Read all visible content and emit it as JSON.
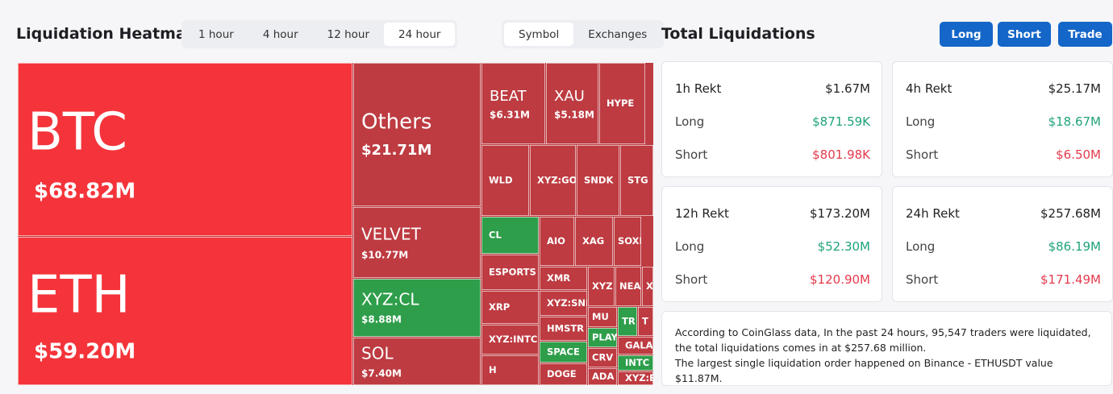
{
  "header": {
    "title": "Liquidation Heatmap",
    "time_tabs": [
      "1 hour",
      "4 hour",
      "12 hour",
      "24 hour"
    ],
    "active_time_tab": 3,
    "view_tabs": [
      "Symbol",
      "Exchanges"
    ],
    "active_view_tab": 0
  },
  "heatmap": {
    "colors": {
      "hot": "#f4343a",
      "loss": "#bd3b41",
      "gain": "#2e9e4a"
    },
    "tiles": [
      {
        "label": "BTC",
        "value": "$68.82M",
        "tone": "hot"
      },
      {
        "label": "ETH",
        "value": "$59.20M",
        "tone": "hot"
      },
      {
        "label": "Others",
        "value": "$21.71M",
        "tone": "loss"
      },
      {
        "label": "VELVET",
        "value": "$10.77M",
        "tone": "loss"
      },
      {
        "label": "XYZ:CL",
        "value": "$8.88M",
        "tone": "gain"
      },
      {
        "label": "SOL",
        "value": "$7.40M",
        "tone": "loss"
      },
      {
        "label": "BEAT",
        "value": "$6.31M",
        "tone": "loss"
      },
      {
        "label": "XAU",
        "value": "$5.18M",
        "tone": "loss"
      },
      {
        "label": "HYPE",
        "tone": "loss"
      },
      {
        "label": "WLD",
        "tone": "loss"
      },
      {
        "label": "XYZ:GOL",
        "tone": "loss"
      },
      {
        "label": "SNDK",
        "tone": "loss"
      },
      {
        "label": "STG",
        "tone": "loss"
      },
      {
        "label": "CL",
        "tone": "gain"
      },
      {
        "label": "AIO",
        "tone": "loss"
      },
      {
        "label": "XAG",
        "tone": "loss"
      },
      {
        "label": "SOXL",
        "tone": "loss"
      },
      {
        "label": "ESPORTS",
        "tone": "loss"
      },
      {
        "label": "XRP",
        "tone": "loss"
      },
      {
        "label": "XYZ:INTC",
        "tone": "loss"
      },
      {
        "label": "H",
        "tone": "loss"
      },
      {
        "label": "XMR",
        "tone": "loss"
      },
      {
        "label": "XYZ:SND",
        "tone": "loss"
      },
      {
        "label": "HMSTR",
        "tone": "loss"
      },
      {
        "label": "SPACE",
        "tone": "gain"
      },
      {
        "label": "DOGE",
        "tone": "loss"
      },
      {
        "label": "XYZ",
        "tone": "loss"
      },
      {
        "label": "NEA",
        "tone": "loss"
      },
      {
        "label": "X",
        "tone": "loss"
      },
      {
        "label": "MU",
        "tone": "loss"
      },
      {
        "label": "PLAY",
        "tone": "gain"
      },
      {
        "label": "CRV",
        "tone": "loss"
      },
      {
        "label": "ADA",
        "tone": "loss"
      },
      {
        "label": "TR",
        "tone": "gain"
      },
      {
        "label": "T",
        "tone": "loss"
      },
      {
        "label": "GALA",
        "tone": "loss"
      },
      {
        "label": "INTC",
        "tone": "gain"
      },
      {
        "label": "XYZ:B",
        "tone": "loss"
      }
    ]
  },
  "totals": {
    "title": "Total Liquidations",
    "buttons": [
      "Long",
      "Short",
      "Trade"
    ],
    "cards": [
      {
        "period": "1h Rekt",
        "total": "$1.67M",
        "long_label": "Long",
        "long": "$871.59K",
        "short_label": "Short",
        "short": "$801.98K"
      },
      {
        "period": "4h Rekt",
        "total": "$25.17M",
        "long_label": "Long",
        "long": "$18.67M",
        "short_label": "Short",
        "short": "$6.50M"
      },
      {
        "period": "12h Rekt",
        "total": "$173.20M",
        "long_label": "Long",
        "long": "$52.30M",
        "short_label": "Short",
        "short": "$120.90M"
      },
      {
        "period": "24h Rekt",
        "total": "$257.68M",
        "long_label": "Long",
        "long": "$86.19M",
        "short_label": "Short",
        "short": "$171.49M"
      }
    ],
    "note": [
      "According to CoinGlass data, In the past 24 hours, 95,547 traders were liquidated, the total liquidations comes in at $257.68 million.",
      "The largest single liquidation order happened on Binance - ETHUSDT value $11.87M."
    ]
  }
}
